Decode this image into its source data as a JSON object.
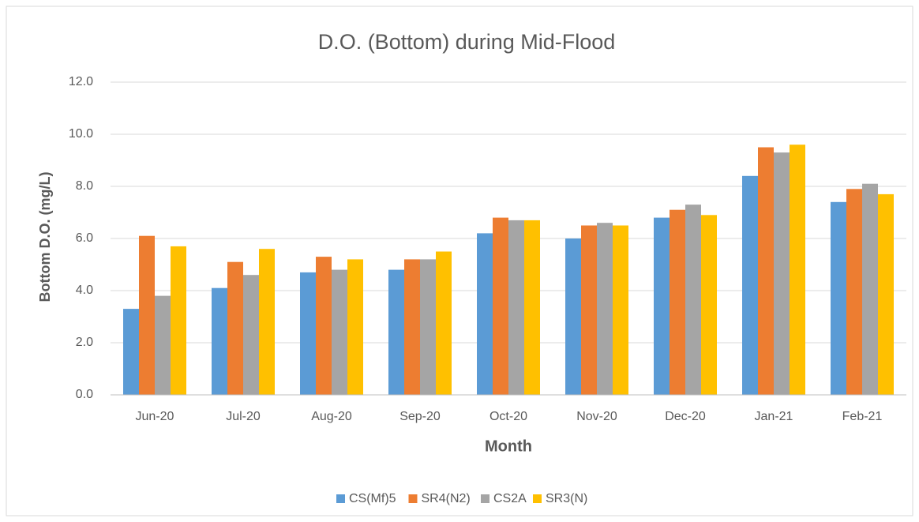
{
  "chart_data": {
    "type": "bar",
    "title": "D.O. (Bottom) during Mid-Flood",
    "x_label": "Month",
    "y_label": "Bottom D.O. (mg/L)",
    "categories": [
      "Jun-20",
      "Jul-20",
      "Aug-20",
      "Sep-20",
      "Oct-20",
      "Nov-20",
      "Dec-20",
      "Jan-21",
      "Feb-21"
    ],
    "series": [
      {
        "name": "CS(Mf)5",
        "color": "#5b9bd5",
        "values": [
          3.3,
          4.1,
          4.7,
          4.8,
          6.2,
          6.0,
          6.8,
          8.4,
          7.4
        ]
      },
      {
        "name": "SR4(N2)",
        "color": "#ed7d31",
        "values": [
          6.1,
          5.1,
          5.3,
          5.2,
          6.8,
          6.5,
          7.1,
          9.5,
          7.9
        ]
      },
      {
        "name": "CS2A",
        "color": "#a5a5a5",
        "values": [
          3.8,
          4.6,
          4.8,
          5.2,
          6.7,
          6.6,
          7.3,
          9.3,
          8.1
        ]
      },
      {
        "name": "SR3(N)",
        "color": "#ffc000",
        "values": [
          5.7,
          5.6,
          5.2,
          5.5,
          6.7,
          6.5,
          6.9,
          9.6,
          7.7
        ]
      }
    ],
    "ylim": [
      0,
      12
    ],
    "yticks": [
      {
        "value": 0,
        "label": "0.0"
      },
      {
        "value": 2,
        "label": "2.0"
      },
      {
        "value": 4,
        "label": "4.0"
      },
      {
        "value": 6,
        "label": "6.0"
      },
      {
        "value": 8,
        "label": "8.0"
      },
      {
        "value": 10,
        "label": "10.0"
      },
      {
        "value": 12,
        "label": "12.0"
      }
    ],
    "grid": true,
    "legend": "bottom"
  }
}
